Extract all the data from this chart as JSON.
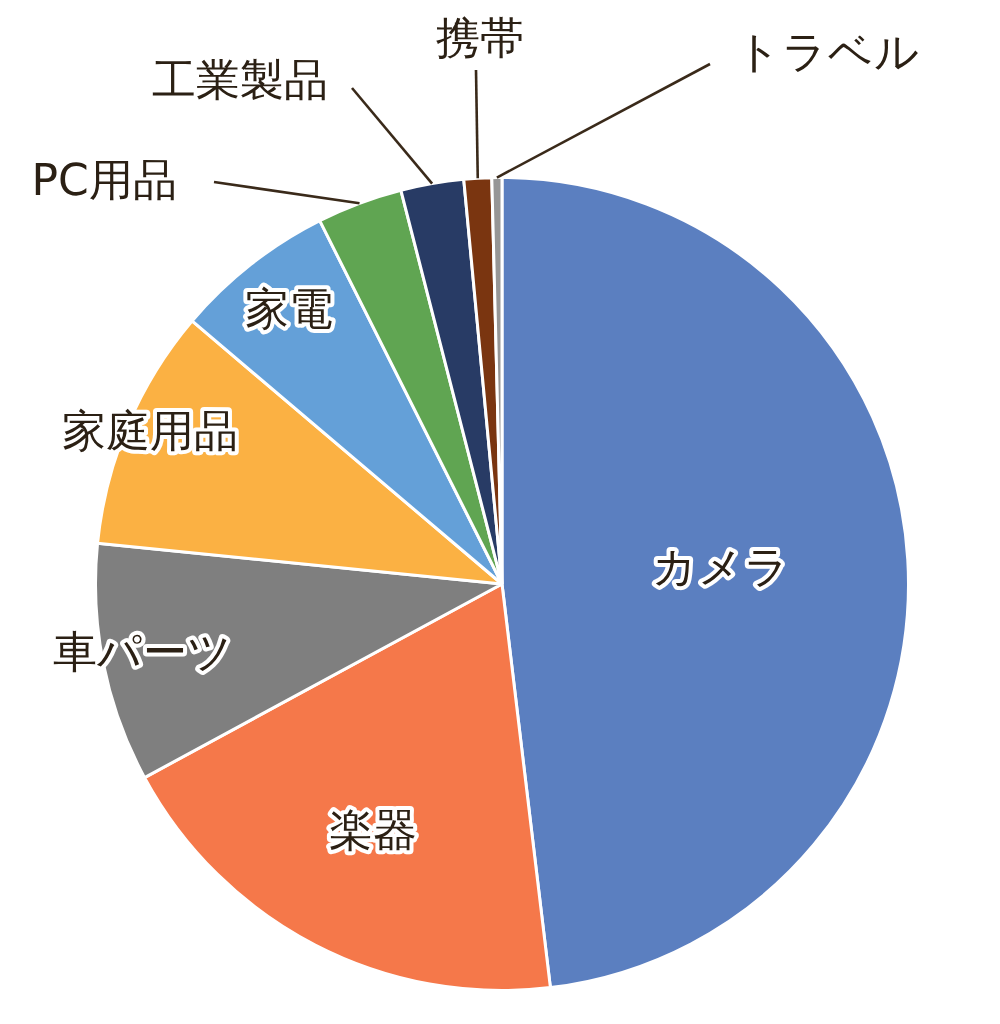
{
  "chart_data": {
    "type": "pie",
    "categories": [
      "カメラ",
      "楽器",
      "車パーツ",
      "家庭用品",
      "家電",
      "PC用品",
      "工業製品",
      "携帯",
      "トラベル"
    ],
    "values": [
      48.1,
      19.0,
      9.5,
      9.6,
      6.4,
      3.4,
      2.5,
      1.1,
      0.4
    ],
    "colors": [
      "#5b7fc0",
      "#f5784a",
      "#7f7f7f",
      "#fbb143",
      "#64a0d8",
      "#60a552",
      "#283b65",
      "#7a3510",
      "#969696"
    ]
  }
}
